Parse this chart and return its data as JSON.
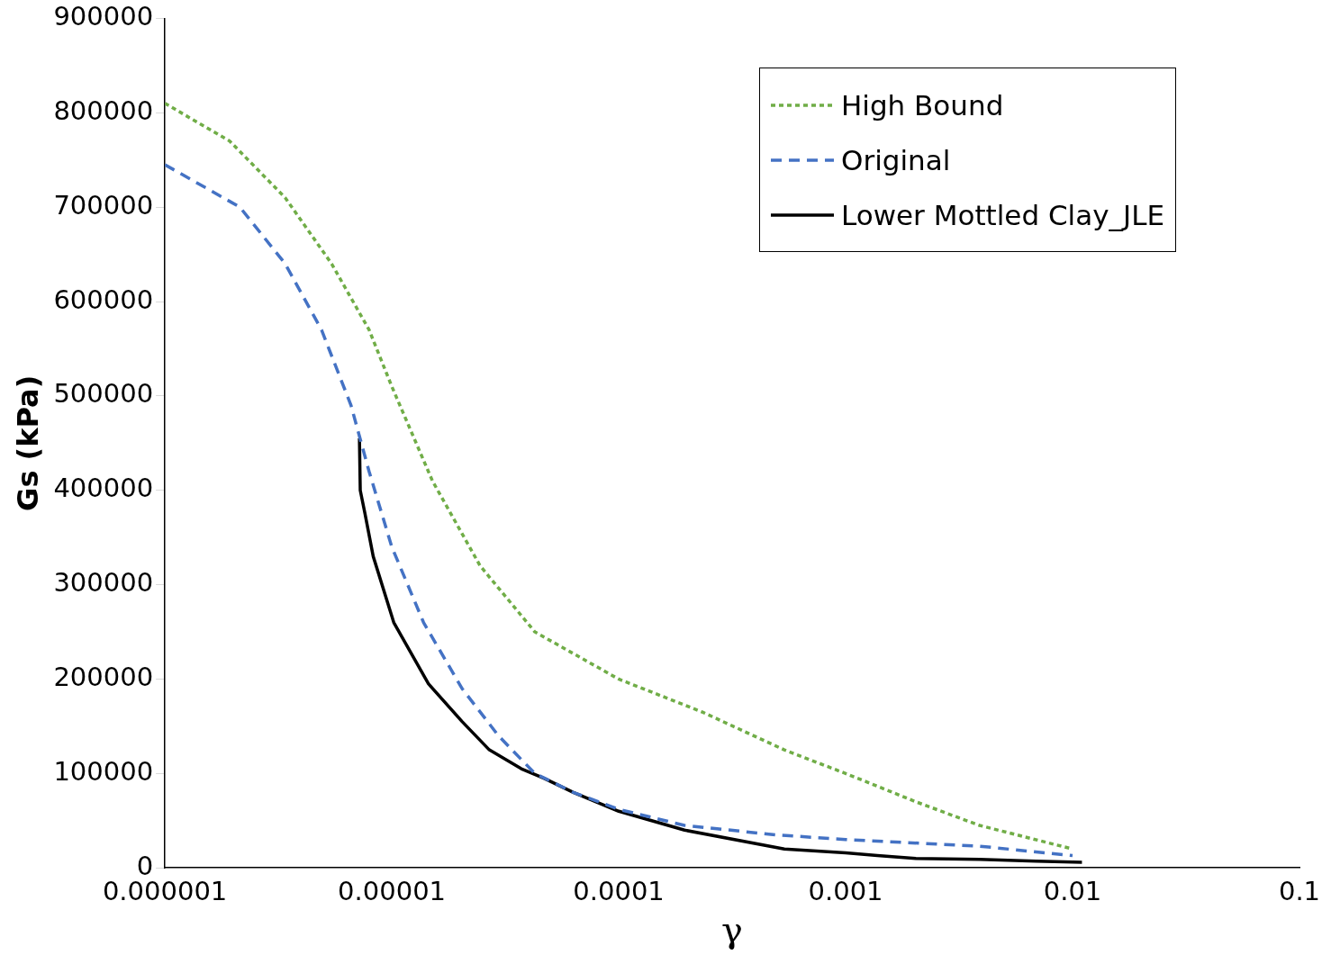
{
  "chart_data": {
    "type": "line",
    "xlabel": "γ",
    "ylabel": "Gs (kPa)",
    "log": "x",
    "xlim": [
      1e-06,
      0.1
    ],
    "xticks": [
      {
        "value": 1e-06,
        "label": "0.000001"
      },
      {
        "value": 1e-05,
        "label": "0.00001"
      },
      0.0001,
      0.001,
      0.01,
      0.1
    ],
    "ylim": [
      0,
      900000
    ],
    "yticks": [
      0,
      100000,
      200000,
      300000,
      400000,
      500000,
      600000,
      700000,
      800000,
      900000
    ],
    "grid": false,
    "legend": "top right",
    "marker": "none",
    "series": [
      {
        "name": "High Bound",
        "color": "#70ad47",
        "line_style": "dotted",
        "x": [
          1e-06,
          1.93e-06,
          3.39e-06,
          5.43e-06,
          7.94e-06,
          1e-05,
          1.51e-05,
          2.45e-05,
          4.27e-05,
          0.0001,
          0.000234,
          0.000537,
          0.001,
          0.00204,
          0.00389,
          0.01
        ],
        "values": [
          810000,
          770000,
          710000,
          640000,
          570000,
          510000,
          410000,
          320000,
          250000,
          200000,
          165000,
          125000,
          100000,
          70000,
          45000,
          20000
        ]
      },
      {
        "name": "Original",
        "color": "#4472c4",
        "line_style": "dashed",
        "x": [
          1e-06,
          2.14e-06,
          3.39e-06,
          4.9e-06,
          6.61e-06,
          7.94e-06,
          1e-05,
          1.38e-05,
          2.04e-05,
          2.95e-05,
          4.27e-05,
          6.31e-05,
          0.0001,
          0.000195,
          0.00049,
          0.001,
          0.00389,
          0.01
        ],
        "values": [
          745000,
          700000,
          640000,
          570000,
          490000,
          420000,
          340000,
          260000,
          190000,
          140000,
          100000,
          80000,
          62000,
          45000,
          35000,
          30000,
          23000,
          13000
        ]
      },
      {
        "name": "Lower Mottled Clay_JLE",
        "color": "#000000",
        "line_style": "solid",
        "x": [
          7.2e-06,
          7.26e-06,
          7.62e-06,
          8.28e-06,
          1.02e-05,
          1.45e-05,
          2.04e-05,
          2.69e-05,
          3.72e-05,
          4.68e-05,
          6.31e-05,
          0.0001,
          0.000195,
          0.000537,
          0.001,
          0.00138,
          0.00204,
          0.00389,
          0.00692,
          0.011
        ],
        "values": [
          455000,
          400000,
          375000,
          330000,
          260000,
          195000,
          155000,
          125000,
          105000,
          95000,
          80000,
          60000,
          40000,
          20000,
          16000,
          13000,
          10000,
          9000,
          7000,
          6000
        ]
      }
    ]
  }
}
